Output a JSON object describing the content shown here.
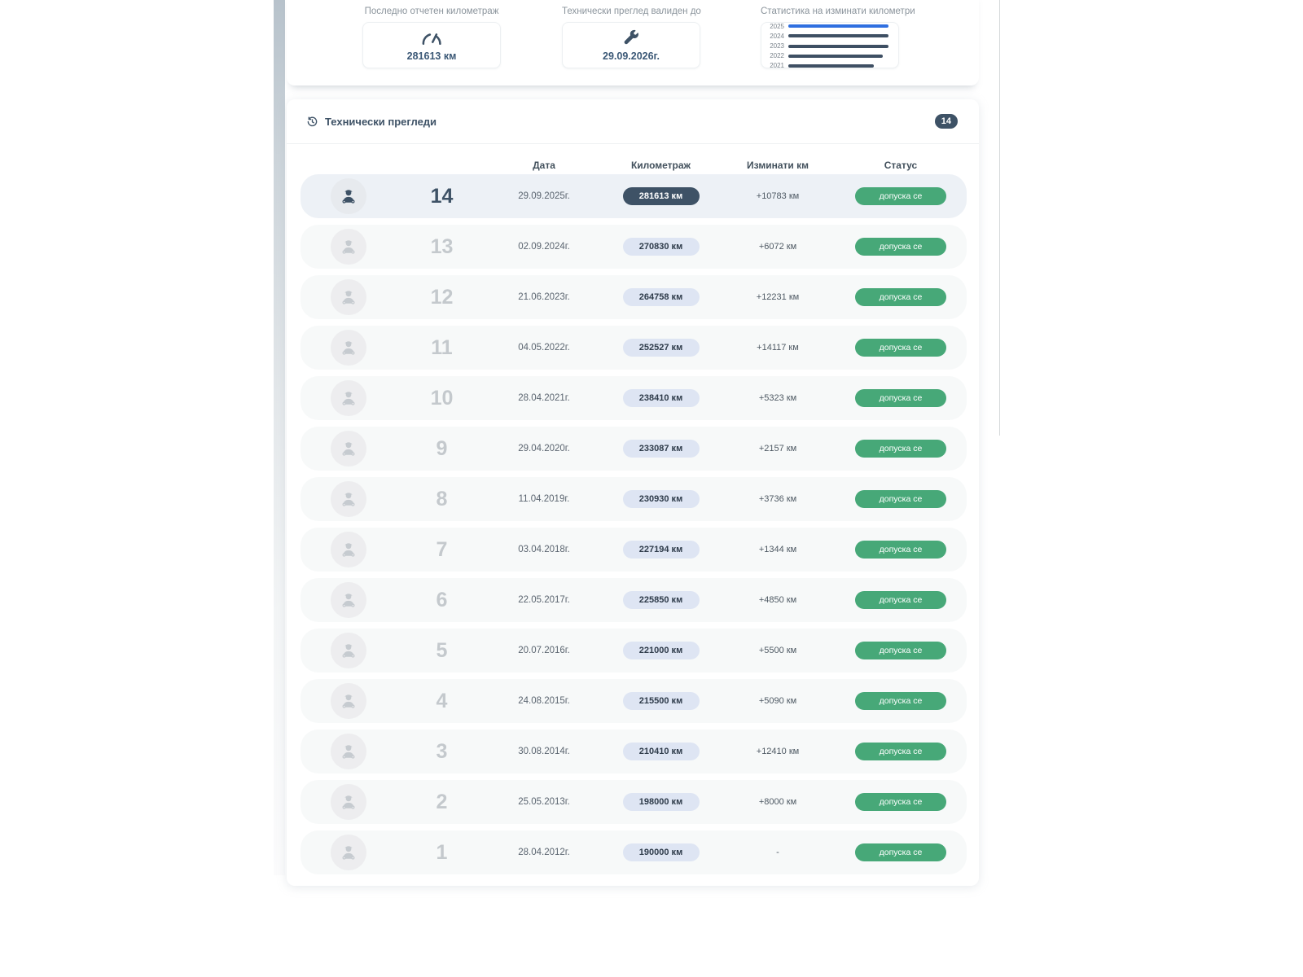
{
  "stats": {
    "mileage": {
      "label": "Последно отчетен километраж",
      "value": "281613 км",
      "icon": "speedometer-icon"
    },
    "inspection_valid": {
      "label": "Технически преглед валиден до",
      "value": "29.09.2026г.",
      "icon": "wrench-icon"
    },
    "chart": {
      "label": "Статистика на изминати километри",
      "type": "bar",
      "years": [
        "2025",
        "2024",
        "2023",
        "2022",
        "2021"
      ],
      "bar_percents": [
        100,
        96.5,
        94.5,
        89,
        80.5
      ],
      "highlight_year": "2025",
      "highlight_color": "#2f6fe0",
      "bar_color": "#3e4f63"
    }
  },
  "inspections": {
    "title": "Технически прегледи",
    "count_badge": "14",
    "columns": {
      "date": "Дата",
      "mileage": "Километраж",
      "traveled": "Изминати км",
      "status": "Статус"
    },
    "rows": [
      {
        "number": "14",
        "date": "29.09.2025г.",
        "mileage": "281613 км",
        "traveled": "+10783 км",
        "status": "допуска се",
        "highlight": true
      },
      {
        "number": "13",
        "date": "02.09.2024г.",
        "mileage": "270830 км",
        "traveled": "+6072 км",
        "status": "допуска се",
        "highlight": false
      },
      {
        "number": "12",
        "date": "21.06.2023г.",
        "mileage": "264758 км",
        "traveled": "+12231 км",
        "status": "допуска се",
        "highlight": false
      },
      {
        "number": "11",
        "date": "04.05.2022г.",
        "mileage": "252527 км",
        "traveled": "+14117 км",
        "status": "допуска се",
        "highlight": false
      },
      {
        "number": "10",
        "date": "28.04.2021г.",
        "mileage": "238410 км",
        "traveled": "+5323 км",
        "status": "допуска се",
        "highlight": false
      },
      {
        "number": "9",
        "date": "29.04.2020г.",
        "mileage": "233087 км",
        "traveled": "+2157 км",
        "status": "допуска се",
        "highlight": false
      },
      {
        "number": "8",
        "date": "11.04.2019г.",
        "mileage": "230930 км",
        "traveled": "+3736 км",
        "status": "допуска се",
        "highlight": false
      },
      {
        "number": "7",
        "date": "03.04.2018г.",
        "mileage": "227194 км",
        "traveled": "+1344 км",
        "status": "допуска се",
        "highlight": false
      },
      {
        "number": "6",
        "date": "22.05.2017г.",
        "mileage": "225850 км",
        "traveled": "+4850 км",
        "status": "допуска се",
        "highlight": false
      },
      {
        "number": "5",
        "date": "20.07.2016г.",
        "mileage": "221000 км",
        "traveled": "+5500 км",
        "status": "допуска се",
        "highlight": false
      },
      {
        "number": "4",
        "date": "24.08.2015г.",
        "mileage": "215500 км",
        "traveled": "+5090 км",
        "status": "допуска се",
        "highlight": false
      },
      {
        "number": "3",
        "date": "30.08.2014г.",
        "mileage": "210410 км",
        "traveled": "+12410 км",
        "status": "допуска се",
        "highlight": false
      },
      {
        "number": "2",
        "date": "25.05.2013г.",
        "mileage": "198000 км",
        "traveled": "+8000 км",
        "status": "допуска се",
        "highlight": false
      },
      {
        "number": "1",
        "date": "28.04.2012г.",
        "mileage": "190000 км",
        "traveled": "-",
        "status": "допуска се",
        "highlight": false
      }
    ]
  },
  "colors": {
    "accent_dark": "#3e5266",
    "status_green": "#47a878",
    "chart_blue": "#2f6fe0",
    "km_badge_bg": "#dee5f3",
    "row_bg": "#f7f9f9",
    "row_highlight_bg": "#edf1f6"
  }
}
